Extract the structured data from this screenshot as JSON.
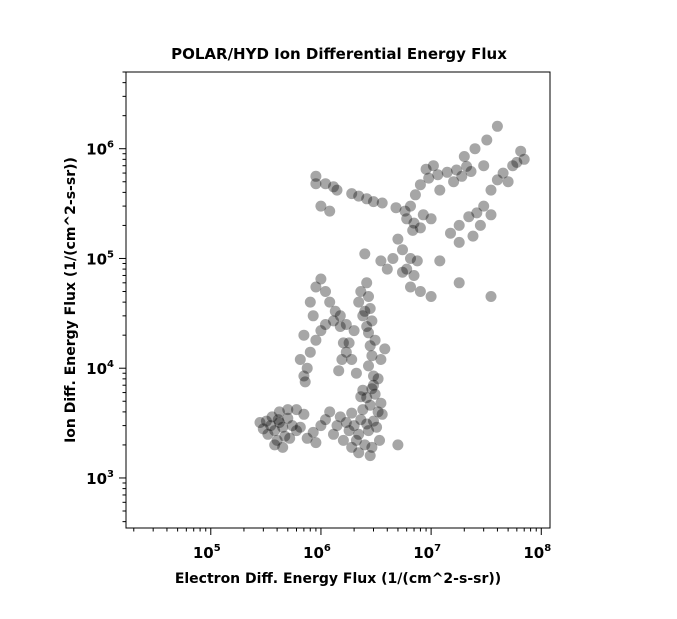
{
  "chart_data": {
    "type": "scatter",
    "title": "POLAR/HYD  Ion Differential Energy Flux",
    "xlabel": "Electron Diff. Energy Flux (1/(cm^2-s-sr))",
    "ylabel": "Ion Diff. Energy Flux (1/(cm^2-s-sr))",
    "x_scale": "log",
    "y_scale": "log",
    "xlim": [
      17000,
      120000000
    ],
    "ylim": [
      350,
      5000000
    ],
    "x_ticks": [
      {
        "value": 100000,
        "base": "10",
        "exp": "5"
      },
      {
        "value": 1000000,
        "base": "10",
        "exp": "6"
      },
      {
        "value": 10000000,
        "base": "10",
        "exp": "7"
      },
      {
        "value": 100000000,
        "base": "10",
        "exp": "8"
      }
    ],
    "y_ticks": [
      {
        "value": 1000,
        "base": "10",
        "exp": "3"
      },
      {
        "value": 10000,
        "base": "10",
        "exp": "4"
      },
      {
        "value": 100000,
        "base": "10",
        "exp": "5"
      },
      {
        "value": 1000000,
        "base": "10",
        "exp": "6"
      }
    ],
    "grid": false,
    "marker_color": "#000000",
    "marker_opacity": 0.35,
    "series": [
      {
        "points": [
          [
            900000,
            560000
          ],
          [
            1100000,
            480000
          ],
          [
            1400000,
            420000
          ],
          [
            1900000,
            390000
          ],
          [
            2600000,
            350000
          ],
          [
            3600000,
            320000
          ],
          [
            4800000,
            290000
          ],
          [
            5800000,
            270000
          ],
          [
            6500000,
            300000
          ],
          [
            7200000,
            380000
          ],
          [
            8000000,
            470000
          ],
          [
            9500000,
            540000
          ],
          [
            11500000,
            580000
          ],
          [
            14000000,
            610000
          ],
          [
            17000000,
            640000
          ],
          [
            21000000,
            690000
          ],
          [
            900000,
            480000
          ],
          [
            1300000,
            450000
          ],
          [
            2200000,
            370000
          ],
          [
            3000000,
            330000
          ],
          [
            6000000,
            230000
          ],
          [
            7000000,
            210000
          ],
          [
            8500000,
            250000
          ],
          [
            10000000,
            230000
          ],
          [
            6800000,
            180000
          ],
          [
            8000000,
            190000
          ],
          [
            12000000,
            420000
          ],
          [
            16000000,
            500000
          ],
          [
            19000000,
            560000
          ],
          [
            23000000,
            620000
          ],
          [
            9000000,
            650000
          ],
          [
            10500000,
            700000
          ],
          [
            1000000,
            300000
          ],
          [
            1200000,
            270000
          ],
          [
            5000000,
            150000
          ],
          [
            5500000,
            120000
          ],
          [
            6500000,
            100000
          ],
          [
            7500000,
            95000
          ],
          [
            6000000,
            80000
          ],
          [
            7000000,
            70000
          ],
          [
            6500000,
            55000
          ],
          [
            8000000,
            50000
          ],
          [
            10000000,
            45000
          ],
          [
            12000000,
            95000
          ],
          [
            15000000,
            170000
          ],
          [
            18000000,
            200000
          ],
          [
            22000000,
            240000
          ],
          [
            26000000,
            260000
          ],
          [
            30000000,
            300000
          ],
          [
            35000000,
            420000
          ],
          [
            40000000,
            520000
          ],
          [
            45000000,
            600000
          ],
          [
            55000000,
            700000
          ],
          [
            70000000,
            800000
          ],
          [
            40000000,
            1600000
          ],
          [
            32000000,
            1200000
          ],
          [
            25000000,
            1000000
          ],
          [
            20000000,
            850000
          ],
          [
            30000000,
            700000
          ],
          [
            50000000,
            500000
          ],
          [
            35000000,
            250000
          ],
          [
            28000000,
            200000
          ],
          [
            24000000,
            160000
          ],
          [
            18000000,
            140000
          ],
          [
            35000000,
            45000
          ],
          [
            18000000,
            60000
          ],
          [
            65000000,
            950000
          ],
          [
            60000000,
            750000
          ],
          [
            2600000,
            60000
          ],
          [
            2700000,
            45000
          ],
          [
            2800000,
            35000
          ],
          [
            2900000,
            27000
          ],
          [
            2700000,
            21000
          ],
          [
            2800000,
            16000
          ],
          [
            2900000,
            13000
          ],
          [
            2700000,
            10500
          ],
          [
            3000000,
            8500
          ],
          [
            2500000,
            33000
          ],
          [
            2600000,
            24000
          ],
          [
            3100000,
            18000
          ],
          [
            2300000,
            50000
          ],
          [
            2200000,
            40000
          ],
          [
            2400000,
            30000
          ],
          [
            2000000,
            22000
          ],
          [
            1800000,
            17000
          ],
          [
            1700000,
            14000
          ],
          [
            1900000,
            12000
          ],
          [
            2100000,
            9000
          ],
          [
            1700000,
            25000
          ],
          [
            1500000,
            30000
          ],
          [
            1300000,
            27000
          ],
          [
            1100000,
            25000
          ],
          [
            1000000,
            22000
          ],
          [
            900000,
            18000
          ],
          [
            800000,
            14000
          ],
          [
            750000,
            10000
          ],
          [
            700000,
            8500
          ],
          [
            720000,
            7500
          ],
          [
            800000,
            40000
          ],
          [
            900000,
            55000
          ],
          [
            1000000,
            65000
          ],
          [
            1100000,
            50000
          ],
          [
            1200000,
            40000
          ],
          [
            1350000,
            33000
          ],
          [
            1500000,
            24000
          ],
          [
            1600000,
            17000
          ],
          [
            1550000,
            12000
          ],
          [
            1450000,
            9500
          ],
          [
            850000,
            30000
          ],
          [
            700000,
            20000
          ],
          [
            650000,
            12000
          ],
          [
            3500000,
            12000
          ],
          [
            3300000,
            8000
          ],
          [
            2900000,
            6500
          ],
          [
            2300000,
            5500
          ],
          [
            3800000,
            15000
          ],
          [
            4000000,
            80000
          ],
          [
            3500000,
            95000
          ],
          [
            4500000,
            100000
          ],
          [
            2500000,
            110000
          ],
          [
            5500000,
            75000
          ],
          [
            350000,
            3000
          ],
          [
            380000,
            2700
          ],
          [
            420000,
            3200
          ],
          [
            450000,
            2900
          ],
          [
            500000,
            3500
          ],
          [
            330000,
            2500
          ],
          [
            400000,
            2200
          ],
          [
            470000,
            2400
          ],
          [
            550000,
            3000
          ],
          [
            600000,
            2700
          ],
          [
            300000,
            2800
          ],
          [
            360000,
            3600
          ],
          [
            420000,
            4000
          ],
          [
            500000,
            4200
          ],
          [
            280000,
            3200
          ],
          [
            380000,
            2000
          ],
          [
            450000,
            1900
          ],
          [
            520000,
            2300
          ],
          [
            320000,
            3300
          ],
          [
            410000,
            3400
          ],
          [
            1700000,
            3200
          ],
          [
            2000000,
            3000
          ],
          [
            2300000,
            3400
          ],
          [
            2600000,
            3100
          ],
          [
            3000000,
            3300
          ],
          [
            1800000,
            2700
          ],
          [
            2200000,
            2500
          ],
          [
            2700000,
            2700
          ],
          [
            3200000,
            2900
          ],
          [
            1500000,
            3600
          ],
          [
            1900000,
            3900
          ],
          [
            2400000,
            4200
          ],
          [
            2800000,
            4600
          ],
          [
            3300000,
            4000
          ],
          [
            1400000,
            3000
          ],
          [
            2100000,
            2200
          ],
          [
            2500000,
            2000
          ],
          [
            2900000,
            1900
          ],
          [
            1900000,
            1900
          ],
          [
            2600000,
            5400
          ],
          [
            3100000,
            5800
          ],
          [
            3500000,
            4800
          ],
          [
            1200000,
            4000
          ],
          [
            1100000,
            3400
          ],
          [
            1000000,
            3000
          ],
          [
            850000,
            2600
          ],
          [
            750000,
            2300
          ],
          [
            2200000,
            1700
          ],
          [
            2800000,
            1600
          ],
          [
            3400000,
            2200
          ],
          [
            5000000,
            2000
          ],
          [
            2400000,
            6300
          ],
          [
            3000000,
            7000
          ],
          [
            3600000,
            3800
          ],
          [
            900000,
            2100
          ],
          [
            650000,
            2900
          ],
          [
            700000,
            3800
          ],
          [
            600000,
            4200
          ],
          [
            1300000,
            2500
          ],
          [
            1600000,
            2200
          ]
        ]
      }
    ]
  }
}
